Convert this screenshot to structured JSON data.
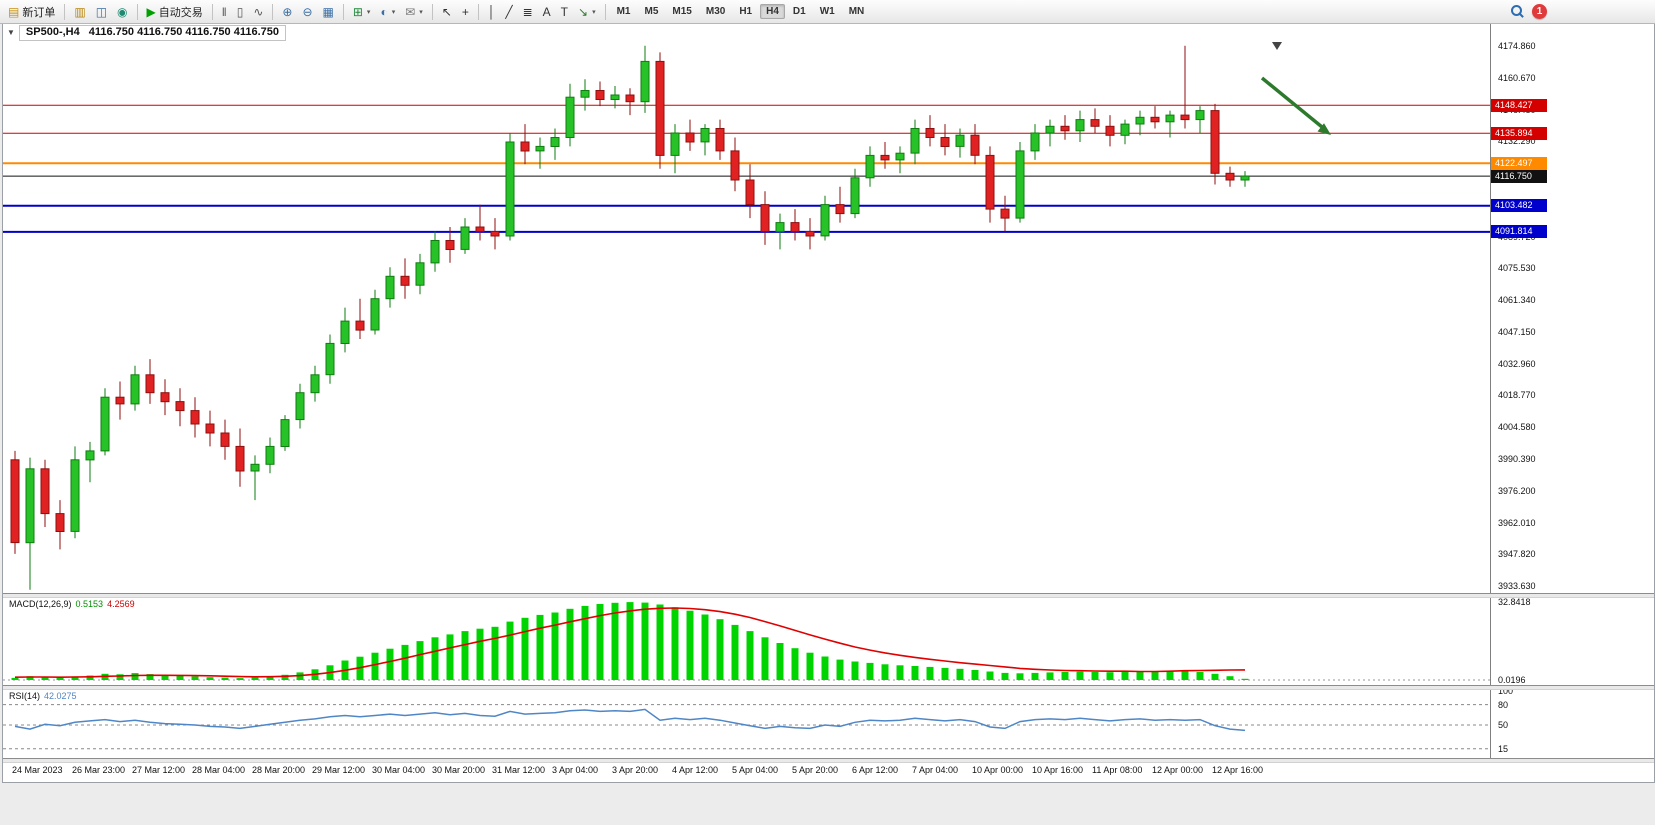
{
  "toolbar": {
    "new_order_label": "新订单",
    "auto_trading_label": "自动交易",
    "notification_count": "1",
    "active_timeframe": "H4",
    "timeframes": [
      "M1",
      "M5",
      "M15",
      "M30",
      "H1",
      "H4",
      "D1",
      "W1",
      "MN"
    ],
    "items": [
      {
        "name": "new-order",
        "glyph": "▤",
        "color": "#c89010",
        "label": "新订单"
      },
      {
        "name": "sep",
        "type": "sep"
      },
      {
        "name": "profiles",
        "glyph": "▥",
        "color": "#b8860b"
      },
      {
        "name": "charts-window",
        "glyph": "◫",
        "color": "#3a6ea5"
      },
      {
        "name": "market-watch",
        "glyph": "◉",
        "color": "#1f8a70"
      },
      {
        "name": "sep",
        "type": "sep"
      },
      {
        "name": "auto-trading",
        "glyph": "▶",
        "color": "#00a000",
        "label": "自动交易"
      },
      {
        "name": "sep",
        "type": "sep"
      },
      {
        "name": "bar-chart",
        "glyph": "‖",
        "color": "#555"
      },
      {
        "name": "candlestick-chart",
        "glyph": "▯",
        "color": "#555"
      },
      {
        "name": "line-chart",
        "glyph": "∿",
        "color": "#555"
      },
      {
        "name": "sep",
        "type": "sep"
      },
      {
        "name": "zoom-in",
        "glyph": "⊕",
        "color": "#3a6ea5"
      },
      {
        "name": "zoom-out",
        "glyph": "⊖",
        "color": "#3a6ea5"
      },
      {
        "name": "tile-windows",
        "glyph": "▦",
        "color": "#3a6ea5"
      },
      {
        "name": "sep",
        "type": "sep"
      },
      {
        "name": "indicators",
        "glyph": "⊞",
        "color": "#1f8a3b",
        "caret": true
      },
      {
        "name": "periods",
        "glyph": "◐",
        "color": "#3a6ea5",
        "caret": true
      },
      {
        "name": "templates",
        "glyph": "✉",
        "color": "#777",
        "caret": true
      },
      {
        "name": "sep",
        "type": "sep"
      },
      {
        "name": "cursor",
        "glyph": "↖",
        "color": "#333"
      },
      {
        "name": "crosshair",
        "glyph": "+",
        "color": "#333"
      },
      {
        "name": "sep",
        "type": "sep"
      },
      {
        "name": "vertical-line",
        "glyph": "│",
        "color": "#333"
      },
      {
        "name": "trendline",
        "glyph": "╱",
        "color": "#333"
      },
      {
        "name": "fibonacci",
        "glyph": "≣",
        "color": "#333"
      },
      {
        "name": "text-tool",
        "glyph": "A",
        "color": "#333"
      },
      {
        "name": "label-tool",
        "glyph": "T",
        "color": "#333"
      },
      {
        "name": "shapes",
        "glyph": "↘",
        "color": "#2d7a2d",
        "caret": true
      },
      {
        "name": "sep",
        "type": "sep"
      }
    ]
  },
  "chart_header": {
    "collapse_icon": "▼",
    "symbol_period": "SP500-,H4",
    "ohlc": "4116.750 4116.750 4116.750 4116.750"
  },
  "main_chart": {
    "y_axis_labels": [
      "4174.860",
      "4160.670",
      "4146.480",
      "4132.290",
      "4118.100",
      "4103.910",
      "4089.720",
      "4075.530",
      "4061.340",
      "4047.150",
      "4032.960",
      "4018.770",
      "4004.580",
      "3990.390",
      "3976.200",
      "3962.010",
      "3947.820",
      "3933.630"
    ],
    "x_axis_labels": [
      "24 Mar 2023",
      "26 Mar 23:00",
      "27 Mar 12:00",
      "28 Mar 04:00",
      "28 Mar 20:00",
      "29 Mar 12:00",
      "30 Mar 04:00",
      "30 Mar 20:00",
      "31 Mar 12:00",
      "3 Apr 04:00",
      "3 Apr 20:00",
      "4 Apr 12:00",
      "5 Apr 04:00",
      "5 Apr 20:00",
      "6 Apr 12:00",
      "7 Apr 04:00",
      "10 Apr 00:00",
      "10 Apr 16:00",
      "11 Apr 08:00",
      "12 Apr 00:00",
      "12 Apr 16:00"
    ],
    "price_lines": [
      {
        "name": "resistance-line-1",
        "value": 4148.427,
        "label": "4148.427",
        "color": "#d40000",
        "width": 1
      },
      {
        "name": "resistance-line-2",
        "value": 4135.894,
        "label": "4135.894",
        "color": "#d40000",
        "width": 1
      },
      {
        "name": "pivot-line",
        "value": 4122.497,
        "label": "4122.497",
        "color": "#ff8a00",
        "width": 2
      },
      {
        "name": "current-price-line",
        "value": 4116.75,
        "label": "4116.750",
        "color": "#111111",
        "width": 1
      },
      {
        "name": "support-line-1",
        "value": 4103.482,
        "label": "4103.482",
        "color": "#0000cc",
        "width": 2
      },
      {
        "name": "support-line-2",
        "value": 4091.814,
        "label": "4091.814",
        "color": "#0000cc",
        "width": 2
      }
    ],
    "annotation_arrow": {
      "color": "#2d7a2d"
    }
  },
  "chart_data": {
    "type": "candlestick",
    "symbol": "SP500-",
    "timeframe": "H4",
    "up_color": "#27c227",
    "up_edge": "#0f7d0f",
    "down_color": "#e02222",
    "down_edge": "#8f0f0f",
    "candles": [
      [
        3990,
        3994,
        3948,
        3953
      ],
      [
        3953,
        3991,
        3932,
        3986
      ],
      [
        3986,
        3990,
        3960,
        3966
      ],
      [
        3966,
        3972,
        3950,
        3958
      ],
      [
        3958,
        3996,
        3955,
        3990
      ],
      [
        3990,
        3998,
        3980,
        3994
      ],
      [
        3994,
        4022,
        3992,
        4018
      ],
      [
        4018,
        4025,
        4008,
        4015
      ],
      [
        4015,
        4032,
        4012,
        4028
      ],
      [
        4028,
        4035,
        4015,
        4020
      ],
      [
        4020,
        4026,
        4010,
        4016
      ],
      [
        4016,
        4022,
        4005,
        4012
      ],
      [
        4012,
        4018,
        4000,
        4006
      ],
      [
        4006,
        4012,
        3996,
        4002
      ],
      [
        4002,
        4008,
        3990,
        3996
      ],
      [
        3996,
        4004,
        3978,
        3985
      ],
      [
        3985,
        3992,
        3972,
        3988
      ],
      [
        3988,
        4000,
        3984,
        3996
      ],
      [
        3996,
        4010,
        3994,
        4008
      ],
      [
        4008,
        4024,
        4004,
        4020
      ],
      [
        4020,
        4032,
        4016,
        4028
      ],
      [
        4028,
        4046,
        4024,
        4042
      ],
      [
        4042,
        4058,
        4038,
        4052
      ],
      [
        4052,
        4062,
        4044,
        4048
      ],
      [
        4048,
        4066,
        4046,
        4062
      ],
      [
        4062,
        4076,
        4058,
        4072
      ],
      [
        4072,
        4080,
        4062,
        4068
      ],
      [
        4068,
        4082,
        4064,
        4078
      ],
      [
        4078,
        4092,
        4074,
        4088
      ],
      [
        4088,
        4094,
        4078,
        4084
      ],
      [
        4084,
        4098,
        4082,
        4094
      ],
      [
        4094,
        4104,
        4088,
        4092
      ],
      [
        4092,
        4098,
        4084,
        4090
      ],
      [
        4090,
        4136,
        4088,
        4132
      ],
      [
        4132,
        4140,
        4122,
        4128
      ],
      [
        4128,
        4134,
        4120,
        4130
      ],
      [
        4130,
        4138,
        4124,
        4134
      ],
      [
        4134,
        4158,
        4130,
        4152
      ],
      [
        4152,
        4160,
        4146,
        4155
      ],
      [
        4155,
        4159,
        4148,
        4151
      ],
      [
        4151,
        4157,
        4147,
        4153
      ],
      [
        4153,
        4156,
        4144,
        4150
      ],
      [
        4150,
        4175,
        4145,
        4168
      ],
      [
        4168,
        4172,
        4120,
        4126
      ],
      [
        4126,
        4140,
        4118,
        4136
      ],
      [
        4136,
        4142,
        4128,
        4132
      ],
      [
        4132,
        4140,
        4126,
        4138
      ],
      [
        4138,
        4142,
        4124,
        4128
      ],
      [
        4128,
        4134,
        4110,
        4115
      ],
      [
        4115,
        4122,
        4098,
        4104
      ],
      [
        4104,
        4110,
        4086,
        4092
      ],
      [
        4092,
        4100,
        4084,
        4096
      ],
      [
        4096,
        4102,
        4088,
        4092
      ],
      [
        4092,
        4098,
        4084,
        4090
      ],
      [
        4090,
        4108,
        4088,
        4104
      ],
      [
        4104,
        4112,
        4096,
        4100
      ],
      [
        4100,
        4120,
        4098,
        4116
      ],
      [
        4116,
        4130,
        4112,
        4126
      ],
      [
        4126,
        4132,
        4120,
        4124
      ],
      [
        4124,
        4130,
        4118,
        4127
      ],
      [
        4127,
        4142,
        4122,
        4138
      ],
      [
        4138,
        4144,
        4130,
        4134
      ],
      [
        4134,
        4140,
        4126,
        4130
      ],
      [
        4130,
        4138,
        4125,
        4135
      ],
      [
        4135,
        4140,
        4122,
        4126
      ],
      [
        4126,
        4130,
        4096,
        4102
      ],
      [
        4102,
        4108,
        4092,
        4098
      ],
      [
        4098,
        4132,
        4096,
        4128
      ],
      [
        4128,
        4140,
        4124,
        4136
      ],
      [
        4136,
        4142,
        4130,
        4139
      ],
      [
        4139,
        4144,
        4133,
        4137
      ],
      [
        4137,
        4146,
        4132,
        4142
      ],
      [
        4142,
        4147,
        4136,
        4139
      ],
      [
        4139,
        4144,
        4130,
        4135
      ],
      [
        4135,
        4142,
        4131,
        4140
      ],
      [
        4140,
        4146,
        4135,
        4143
      ],
      [
        4143,
        4148,
        4138,
        4141
      ],
      [
        4141,
        4146,
        4134,
        4144
      ],
      [
        4144,
        4175,
        4138,
        4142
      ],
      [
        4142,
        4148,
        4136,
        4146
      ],
      [
        4146,
        4149,
        4113,
        4118
      ],
      [
        4118,
        4121,
        4112,
        4115
      ],
      [
        4115,
        4119,
        4112,
        4116.75
      ]
    ],
    "indicators": {
      "macd": {
        "label": "MACD(12,26,9)",
        "value_main": "0.5153",
        "value_signal": "4.2569",
        "histogram_color": "#00d400",
        "signal_color": "#e00000",
        "axis_labels": [
          "32.8418",
          "0.0196"
        ],
        "histogram": [
          0.9,
          1.6,
          1.3,
          1.0,
          1.5,
          1.9,
          2.6,
          2.4,
          2.9,
          2.5,
          2.1,
          1.8,
          1.5,
          1.2,
          1.0,
          0.8,
          1.0,
          1.5,
          2.2,
          3.2,
          4.5,
          6.2,
          8.2,
          9.8,
          11.5,
          13.2,
          14.8,
          16.4,
          18.0,
          19.2,
          20.6,
          21.6,
          22.4,
          24.6,
          26.2,
          27.4,
          28.4,
          30.0,
          31.2,
          32.0,
          32.5,
          32.8,
          32.6,
          31.8,
          30.6,
          29.2,
          27.6,
          25.6,
          23.2,
          20.6,
          18.0,
          15.6,
          13.4,
          11.5,
          9.9,
          8.6,
          7.8,
          7.2,
          6.6,
          6.2,
          5.9,
          5.5,
          5.1,
          4.7,
          4.2,
          3.6,
          3.0,
          2.8,
          3.0,
          3.2,
          3.4,
          3.5,
          3.4,
          3.3,
          3.4,
          3.5,
          3.6,
          3.7,
          3.8,
          3.4,
          2.6,
          1.6,
          0.5
        ],
        "signal": [
          1.2,
          1.25,
          1.25,
          1.2,
          1.25,
          1.35,
          1.55,
          1.7,
          1.9,
          2.0,
          2.0,
          1.95,
          1.85,
          1.75,
          1.6,
          1.45,
          1.35,
          1.4,
          1.55,
          1.85,
          2.4,
          3.1,
          4.1,
          5.2,
          6.5,
          7.8,
          9.2,
          10.7,
          12.1,
          13.5,
          14.9,
          16.3,
          17.5,
          18.9,
          20.4,
          21.8,
          23.1,
          24.5,
          25.8,
          27.1,
          28.2,
          29.1,
          29.8,
          30.2,
          30.3,
          30.1,
          29.6,
          28.8,
          27.7,
          26.3,
          24.6,
          22.8,
          20.9,
          19.0,
          17.2,
          15.5,
          13.9,
          12.6,
          11.4,
          10.4,
          9.5,
          8.7,
          8.0,
          7.3,
          6.7,
          6.1,
          5.5,
          4.9,
          4.5,
          4.2,
          4.0,
          3.9,
          3.8,
          3.7,
          3.7,
          3.6,
          3.6,
          3.7,
          3.9,
          4.0,
          4.1,
          4.2,
          4.26
        ]
      },
      "rsi": {
        "label": "RSI(14)",
        "value": "42.0275",
        "line_color": "#4f86c6",
        "levels": [
          80,
          50,
          15
        ],
        "axis_labels": [
          "100",
          "80",
          "50",
          "15"
        ],
        "values": [
          48,
          44,
          51,
          49,
          54,
          56,
          58,
          55,
          57,
          54,
          52,
          51,
          50,
          48,
          47,
          45,
          48,
          51,
          54,
          57,
          59,
          62,
          64,
          62,
          64,
          66,
          64,
          66,
          68,
          65,
          67,
          64,
          63,
          70,
          66,
          67,
          68,
          71,
          72,
          70,
          71,
          70,
          73,
          57,
          60,
          58,
          60,
          57,
          53,
          49,
          45,
          48,
          46,
          45,
          50,
          48,
          54,
          57,
          56,
          57,
          60,
          58,
          56,
          58,
          55,
          47,
          45,
          55,
          58,
          59,
          58,
          60,
          58,
          56,
          58,
          59,
          57,
          58,
          57,
          58,
          49,
          44,
          42.03
        ]
      }
    }
  }
}
